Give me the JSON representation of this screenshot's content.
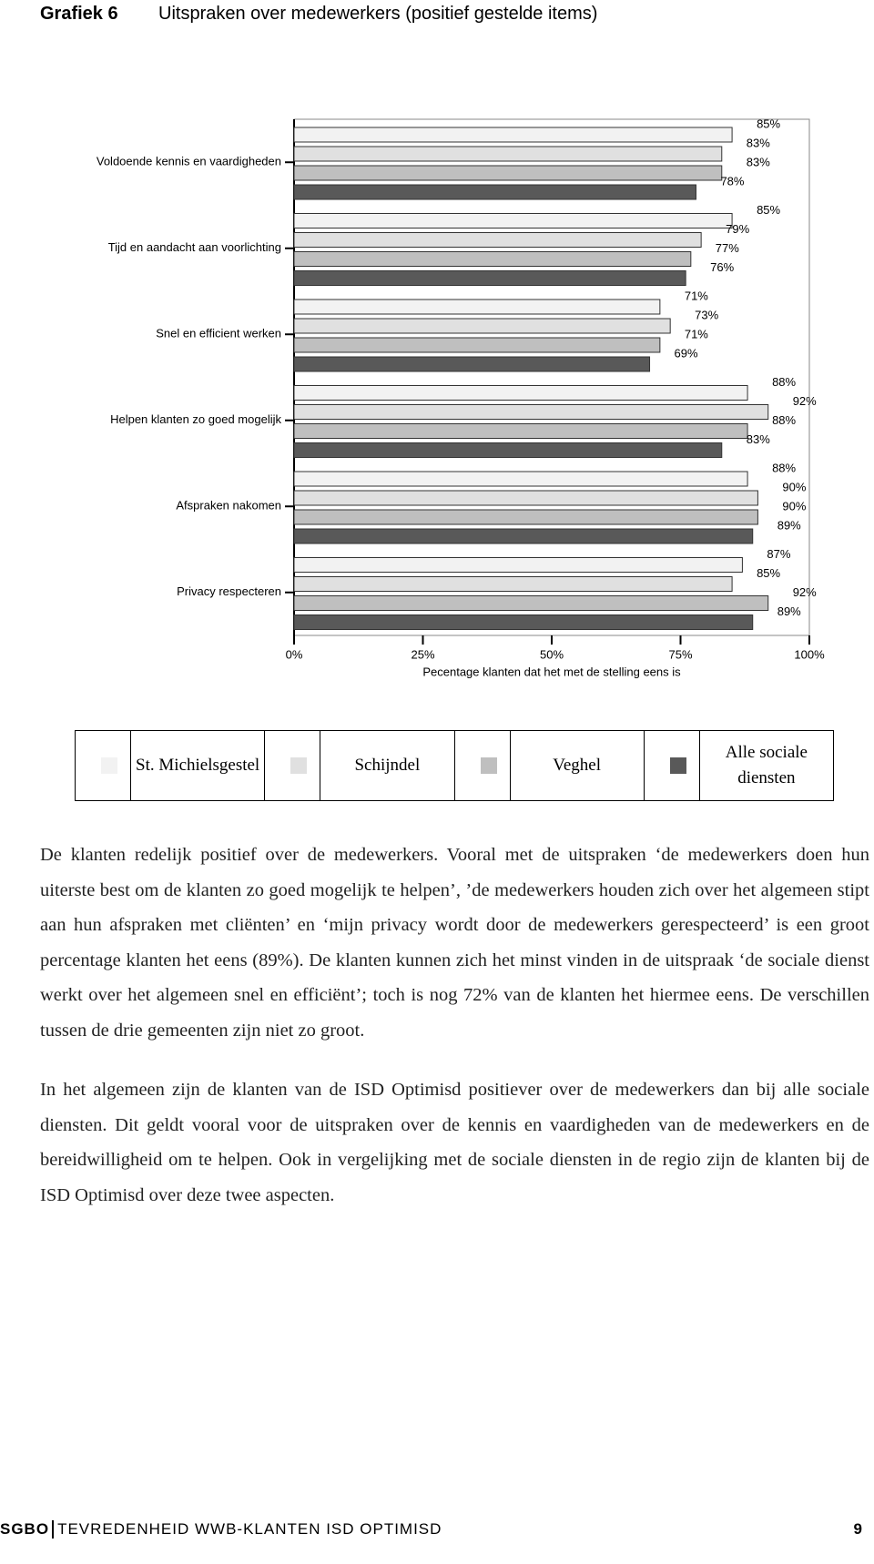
{
  "header": {
    "label": "Grafiek 6",
    "title": "Uitspraken over medewerkers (positief gestelde items)"
  },
  "chart_data": {
    "type": "hbar",
    "categories": [
      "Voldoende kennis en vaardigheden",
      "Tijd en aandacht aan voorlichting",
      "Snel en efficient werken",
      "Helpen klanten zo goed mogelijk",
      "Afspraken nakomen",
      "Privacy respecteren"
    ],
    "series": [
      {
        "name": "St. Michielsgestel",
        "color": "#f2f2f2",
        "values": [
          85,
          85,
          71,
          88,
          88,
          87
        ],
        "value_labels": [
          "85%",
          "85%",
          "71%",
          "88%",
          "88%",
          "87%"
        ]
      },
      {
        "name": "Schijndel",
        "color": "#e0e0e0",
        "values": [
          83,
          79,
          73,
          92,
          90,
          85
        ],
        "value_labels": [
          "83%",
          "79%",
          "73%",
          "92%",
          "90%",
          "85%"
        ]
      },
      {
        "name": "Veghel",
        "color": "#bfbfbf",
        "values": [
          83,
          77,
          71,
          88,
          90,
          92
        ],
        "value_labels": [
          "83%",
          "77%",
          "71%",
          "88%",
          "90%",
          "92%"
        ]
      },
      {
        "name": "Alle sociale diensten",
        "color": "#595959",
        "values": [
          78,
          76,
          69,
          83,
          89,
          89
        ],
        "value_labels": [
          "78%",
          "76%",
          "69%",
          "83%",
          "89%",
          "89%"
        ]
      }
    ],
    "xlim": [
      0,
      100
    ],
    "xticks": [
      {
        "value": 0,
        "label": "0%"
      },
      {
        "value": 25,
        "label": "25%"
      },
      {
        "value": 50,
        "label": "50%"
      },
      {
        "value": 75,
        "label": "75%"
      },
      {
        "value": 100,
        "label": "100%"
      }
    ],
    "xlabel": "Pecentage klanten dat het met de stelling eens is"
  },
  "paragraphs": [
    "De klanten redelijk positief over de medewerkers. Vooral met de uitspraken ‘de medewerkers doen hun uiterste best om de klanten zo goed mogelijk te helpen’, ’de medewerkers houden zich over het algemeen stipt aan hun afspraken met cliënten’ en ‘mijn privacy wordt door de medewerkers gerespecteerd’ is een groot percentage klanten het eens (89%). De klanten kunnen zich het minst vinden in de uitspraak ‘de sociale dienst werkt over het algemeen snel en efficiënt’; toch is nog 72% van de klanten het hiermee eens. De verschillen tussen de drie gemeenten zijn niet zo groot.",
    "In het algemeen zijn de klanten van de ISD Optimisd positiever over de medewerkers dan bij alle sociale diensten. Dit geldt vooral voor de uitspraken over de kennis en vaardigheden van de medewerkers en de bereidwilligheid om te helpen. Ook in vergelijking met de sociale diensten in de regio zijn de klanten bij de ISD Optimisd over deze twee aspecten."
  ],
  "footer": {
    "org": "SGBO",
    "title": "TEVREDENHEID WWB-KLANTEN ISD OPTIMISD",
    "page": "9"
  }
}
